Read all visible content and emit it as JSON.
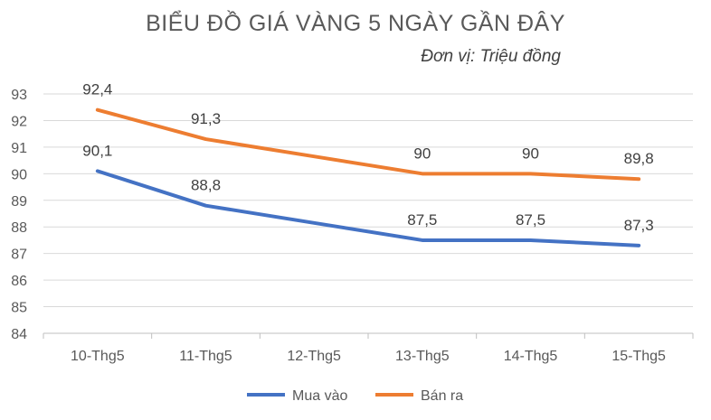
{
  "chart_data": {
    "type": "line",
    "title": "BIỂU ĐỒ GIÁ VÀNG 5 NGÀY GẦN ĐÂY",
    "subtitle": "Đơn vị: Triệu đồng",
    "xlabel": "",
    "ylabel": "",
    "categories": [
      "10-Thg5",
      "11-Thg5",
      "12-Thg5",
      "13-Thg5",
      "14-Thg5",
      "15-Thg5"
    ],
    "ylim": [
      84,
      93
    ],
    "yticks": [
      84,
      85,
      86,
      87,
      88,
      89,
      90,
      91,
      92,
      93
    ],
    "grid": true,
    "legend_position": "bottom",
    "series": [
      {
        "name": "Mua vào",
        "color": "#4472C4",
        "values": [
          90.1,
          88.8,
          null,
          87.5,
          87.5,
          87.3
        ],
        "labels": [
          "90,1",
          "88,8",
          "",
          "87,5",
          "87,5",
          "87,3"
        ]
      },
      {
        "name": "Bán ra",
        "color": "#ED7D31",
        "values": [
          92.4,
          91.3,
          null,
          90,
          90,
          89.8
        ],
        "labels": [
          "92,4",
          "91,3",
          "",
          "90",
          "90",
          "89,8"
        ]
      }
    ]
  }
}
